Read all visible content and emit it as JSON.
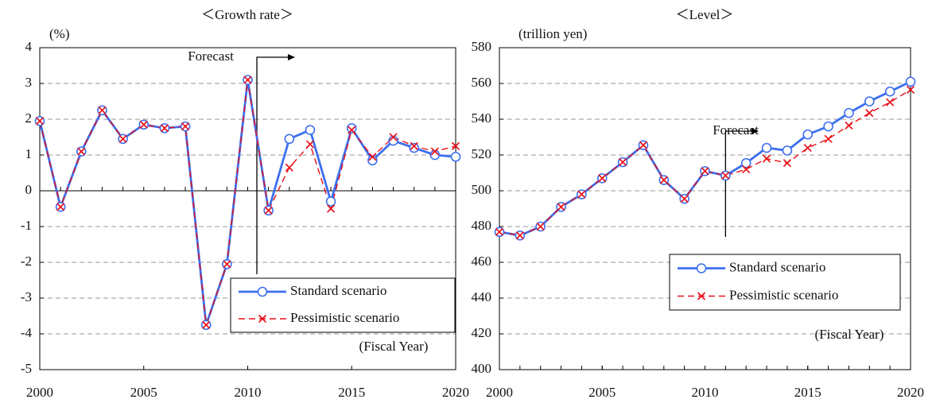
{
  "chart_data": [
    {
      "type": "line",
      "title": "＜Growth rate＞",
      "ylabel": "(%)",
      "xlabel": "(Fiscal Year)",
      "annotation": "Forecast",
      "x": [
        2000,
        2001,
        2002,
        2003,
        2004,
        2005,
        2006,
        2007,
        2008,
        2009,
        2010,
        2011,
        2012,
        2013,
        2014,
        2015,
        2016,
        2017,
        2018,
        2019,
        2020
      ],
      "series": [
        {
          "name": "Standard scenario",
          "color": "#3c6ff0",
          "marker": "o",
          "linestyle": "solid",
          "values": [
            1.95,
            -0.45,
            1.1,
            2.25,
            1.45,
            1.85,
            1.75,
            1.8,
            -3.75,
            -2.05,
            3.1,
            -0.55,
            1.45,
            1.7,
            -0.3,
            1.75,
            0.85,
            1.4,
            1.2,
            1.0,
            0.95
          ]
        },
        {
          "name": "Pessimistic scenario",
          "color": "#e8101a",
          "marker": "x",
          "linestyle": "dashed",
          "values": [
            1.95,
            -0.45,
            1.1,
            2.25,
            1.45,
            1.85,
            1.75,
            1.8,
            -3.75,
            -2.05,
            3.1,
            -0.55,
            0.65,
            1.3,
            -0.5,
            1.7,
            0.95,
            1.5,
            1.25,
            1.1,
            1.25
          ]
        }
      ],
      "xlim": [
        2000,
        2020
      ],
      "xticks": [
        2000,
        2005,
        2010,
        2015,
        2020
      ],
      "ylim": [
        -5,
        4
      ],
      "yticks": [
        -5,
        -4,
        -3,
        -2,
        -1,
        0,
        1,
        2,
        3,
        4
      ],
      "grid": true,
      "legend": "lower right"
    },
    {
      "type": "line",
      "title": "＜Level＞",
      "ylabel": "(trillion yen)",
      "xlabel": "(Fiscal Year)",
      "annotation": "Forecast",
      "x": [
        2000,
        2001,
        2002,
        2003,
        2004,
        2005,
        2006,
        2007,
        2008,
        2009,
        2010,
        2011,
        2012,
        2013,
        2014,
        2015,
        2016,
        2017,
        2018,
        2019,
        2020
      ],
      "series": [
        {
          "name": "Standard scenario",
          "color": "#3c6ff0",
          "marker": "o",
          "linestyle": "solid",
          "values": [
            477,
            475,
            480,
            491,
            498,
            507,
            516,
            525.5,
            506,
            495.5,
            511,
            508.5,
            515.5,
            524,
            522.5,
            531.5,
            536,
            543.5,
            550,
            555.5,
            561
          ]
        },
        {
          "name": "Pessimistic scenario",
          "color": "#e8101a",
          "marker": "x",
          "linestyle": "dashed",
          "values": [
            477,
            475,
            480,
            491,
            498,
            507,
            516,
            525.5,
            506,
            495.5,
            511,
            508.5,
            512,
            518,
            515.5,
            524,
            529,
            536.5,
            543.5,
            549.5,
            556.5
          ]
        }
      ],
      "xlim": [
        2000,
        2020
      ],
      "xticks": [
        2000,
        2005,
        2010,
        2015,
        2020
      ],
      "ylim": [
        400,
        580
      ],
      "yticks": [
        400,
        420,
        440,
        460,
        480,
        500,
        520,
        540,
        560,
        580
      ],
      "grid": true,
      "legend": "lower right"
    }
  ]
}
